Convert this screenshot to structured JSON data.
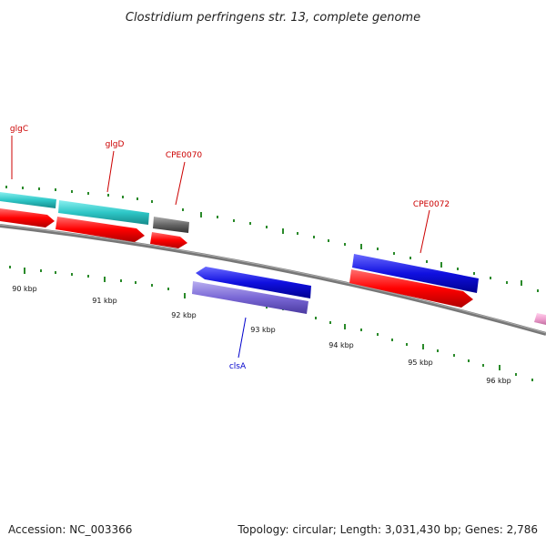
{
  "title": "Clostridium perfringens str. 13, complete genome",
  "footer": {
    "accession": "Accession: NC_003366",
    "topology": "Topology: circular; Length: 3,031,430 bp; Genes: 2,786"
  },
  "ruler_labels": [
    "90 kbp",
    "91 kbp",
    "92 kbp",
    "93 kbp",
    "94 kbp",
    "95 kbp",
    "96 kbp"
  ],
  "gene_labels": [
    {
      "id": "glgC",
      "text": "glgC",
      "color": "#cc0000"
    },
    {
      "id": "glgD",
      "text": "glgD",
      "color": "#cc0000"
    },
    {
      "id": "CPE0070",
      "text": "CPE0070",
      "color": "#cc0000"
    },
    {
      "id": "CPE0072",
      "text": "CPE0072",
      "color": "#cc0000"
    },
    {
      "id": "clsA",
      "text": "clsA",
      "color": "#0000cc"
    }
  ],
  "colors": {
    "backbone": "#777777",
    "cds": "#ff0000",
    "gene_cyan": "#2ec7c7",
    "gene_blue": "#1010e0",
    "gene_purple": "#7a68d6",
    "gene_gray": "#666666",
    "gene_pink": "#f0a0d0",
    "tick": "#2a8a2a"
  }
}
